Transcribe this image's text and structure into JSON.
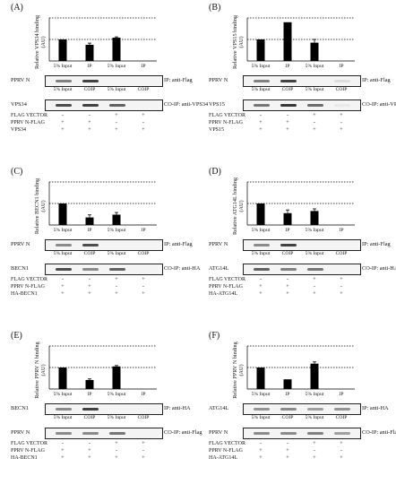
{
  "panels": [
    {
      "label": "(A)",
      "ylabel": "Relative VPS34 binding (AU)",
      "bars": [
        1.0,
        0.75,
        1.08
      ],
      "errs": [
        0,
        0.08,
        0.04
      ],
      "x_labels": [
        "5% Input",
        "IP",
        "5% Input",
        "IP"
      ],
      "blot1_name": "PPRV N",
      "blot1_side": "IP: anti-Flag",
      "blot1_bands": [
        0.55,
        0.85,
        0.0,
        0.0
      ],
      "mid_labels": [
        "5% Input",
        "COIP",
        "5% Input",
        "COIP"
      ],
      "blot2_name": "VPS34",
      "blot2_side": "CO-IP: anti-VPS34",
      "blot2_bands": [
        0.8,
        0.85,
        0.7,
        0.0
      ],
      "rows": [
        {
          "name": "FLAG VECTOR",
          "signs": [
            "-",
            "-",
            "+",
            "+"
          ]
        },
        {
          "name": "PPRV N-FLAG",
          "signs": [
            "+",
            "+",
            "-",
            "-"
          ]
        },
        {
          "name": "VPS34",
          "signs": [
            "+",
            "+",
            "+",
            "+"
          ]
        }
      ]
    },
    {
      "label": "(B)",
      "ylabel": "Relative VPS15 binding (AU)",
      "bars": [
        1.0,
        1.8,
        0.85
      ],
      "errs": [
        0,
        0,
        0.15
      ],
      "x_labels": [
        "5% Input",
        "IP",
        "5% Input",
        "IP"
      ],
      "blot1_name": "PPRV N",
      "blot1_side": "IP: anti-Flag",
      "blot1_bands": [
        0.55,
        0.85,
        0.0,
        0.1
      ],
      "mid_labels": [
        "5% Input",
        "COIP",
        "5% Input",
        "COIP"
      ],
      "blot2_name": "VPS15",
      "blot2_side": "CO-IP: anti-VPS15",
      "blot2_bands": [
        0.6,
        0.9,
        0.65,
        0.05
      ],
      "rows": [
        {
          "name": "FLAG VECTOR",
          "signs": [
            "-",
            "-",
            "+",
            "+"
          ]
        },
        {
          "name": "PPRV N-FLAG",
          "signs": [
            "+",
            "+",
            "-",
            "-"
          ]
        },
        {
          "name": "VPS15",
          "signs": [
            "+",
            "+",
            "+",
            "+"
          ]
        }
      ]
    },
    {
      "label": "(C)",
      "ylabel": "Relative BECN1 binding (AU)",
      "bars": [
        1.0,
        0.35,
        0.48
      ],
      "errs": [
        0,
        0.12,
        0.1
      ],
      "x_labels": [
        "5% Input",
        "IP",
        "5% Input",
        "IP"
      ],
      "blot1_name": "PPRV N",
      "blot1_side": "IP: anti-Flag",
      "blot1_bands": [
        0.5,
        0.8,
        0.0,
        0.0
      ],
      "mid_labels": [
        "5% Input",
        "COIP",
        "5% Input",
        "COIP"
      ],
      "blot2_name": "BECN1",
      "blot2_side": "CO-IP: anti-HA",
      "blot2_bands": [
        0.8,
        0.5,
        0.7,
        0.0
      ],
      "rows": [
        {
          "name": "FLAG VECTOR",
          "signs": [
            "-",
            "-",
            "+",
            "+"
          ]
        },
        {
          "name": "PPRV N-FLAG",
          "signs": [
            "+",
            "+",
            "-",
            "-"
          ]
        },
        {
          "name": "HA-BECN1",
          "signs": [
            "+",
            "+",
            "+",
            "+"
          ]
        }
      ]
    },
    {
      "label": "(D)",
      "ylabel": "Relative ATG14L binding (AU)",
      "bars": [
        1.0,
        0.55,
        0.65
      ],
      "errs": [
        0,
        0.15,
        0.1
      ],
      "x_labels": [
        "5% Input",
        "IP",
        "5% Input",
        "IP"
      ],
      "blot1_name": "PPRV N",
      "blot1_side": "IP: anti-Flag",
      "blot1_bands": [
        0.5,
        0.85,
        0.0,
        0.0
      ],
      "mid_labels": [
        "5% Input",
        "COIP",
        "5% Input",
        "COIP"
      ],
      "blot2_name": "ATG14L",
      "blot2_side": "CO-IP: anti-HA",
      "blot2_bands": [
        0.7,
        0.55,
        0.6,
        0.0
      ],
      "rows": [
        {
          "name": "FLAG VECTOR",
          "signs": [
            "-",
            "-",
            "+",
            "+"
          ]
        },
        {
          "name": "PPRV N-FLAG",
          "signs": [
            "+",
            "+",
            "-",
            "-"
          ]
        },
        {
          "name": "HA-ATG14L",
          "signs": [
            "+",
            "+",
            "+",
            "+"
          ]
        }
      ]
    },
    {
      "label": "(E)",
      "ylabel": "Relative PPRV N binding (AU)",
      "bars": [
        1.0,
        0.42,
        1.05
      ],
      "errs": [
        0,
        0.05,
        0.04
      ],
      "x_labels": [
        "5% Input",
        "IP",
        "5% Input",
        "IP"
      ],
      "blot1_name": "BECN1",
      "blot1_side": "IP: anti-HA",
      "blot1_bands": [
        0.5,
        0.85,
        0.0,
        0.0
      ],
      "mid_labels": [
        "5% Input",
        "COIP",
        "5% Input",
        "COIP"
      ],
      "blot2_name": "PPRV N",
      "blot2_side": "CO-IP: anti-Flag",
      "blot2_bands": [
        0.5,
        0.5,
        0.6,
        0.0
      ],
      "rows": [
        {
          "name": "FLAG VECTOR",
          "signs": [
            "-",
            "-",
            "+",
            "+"
          ]
        },
        {
          "name": "PPRV N-FLAG",
          "signs": [
            "+",
            "+",
            "-",
            "-"
          ]
        },
        {
          "name": "HA-BECN1",
          "signs": [
            "+",
            "+",
            "+",
            "+"
          ]
        }
      ]
    },
    {
      "label": "(F)",
      "ylabel": "Relative PPRV N binding (AU)",
      "bars": [
        1.0,
        0.45,
        1.18
      ],
      "errs": [
        0,
        0,
        0.08
      ],
      "x_labels": [
        "5% Input",
        "IP",
        "5% Input",
        "IP"
      ],
      "blot1_name": "ATG14L",
      "blot1_side": "IP: anti-HA",
      "blot1_bands": [
        0.45,
        0.5,
        0.4,
        0.45
      ],
      "mid_labels": [
        "5% Input",
        "COIP",
        "5% Input",
        "COIP"
      ],
      "blot2_name": "PPRV N",
      "blot2_side": "CO-IP: anti-Flag",
      "blot2_bands": [
        0.5,
        0.5,
        0.55,
        0.4
      ],
      "rows": [
        {
          "name": "FLAG VECTOR",
          "signs": [
            "-",
            "-",
            "+",
            "+"
          ]
        },
        {
          "name": "PPRV N-FLAG",
          "signs": [
            "+",
            "+",
            "-",
            "-"
          ]
        },
        {
          "name": "HA-ATG14L",
          "signs": [
            "+",
            "+",
            "+",
            "+"
          ]
        }
      ]
    }
  ]
}
